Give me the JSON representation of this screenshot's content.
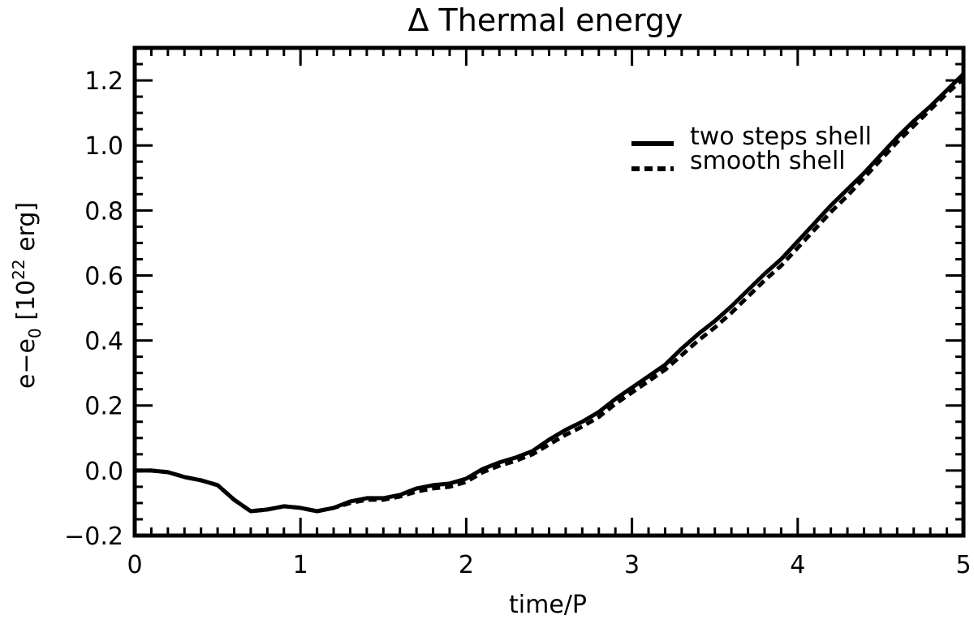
{
  "chart_data": {
    "type": "line",
    "title": "Δ Thermal energy",
    "xlabel": "time/P",
    "ylabel": {
      "prefix": "e−e",
      "sub": "0",
      "unit_open": " [10",
      "sup": "22",
      "unit_close": " erg]"
    },
    "xlim": [
      0,
      5
    ],
    "ylim": [
      -0.2,
      1.3
    ],
    "xticks": [
      0,
      1,
      2,
      3,
      4,
      5
    ],
    "xtick_labels": [
      "0",
      "1",
      "2",
      "3",
      "4",
      "5"
    ],
    "yticks": [
      -0.2,
      0.0,
      0.2,
      0.4,
      0.6,
      0.8,
      1.0,
      1.2
    ],
    "ytick_labels": [
      "−0.2",
      "0.0",
      "0.2",
      "0.4",
      "0.6",
      "0.8",
      "1.0",
      "1.2"
    ],
    "legend_position": "top-right",
    "x": [
      0,
      0.1,
      0.2,
      0.3,
      0.4,
      0.5,
      0.6,
      0.7,
      0.8,
      0.9,
      1.0,
      1.1,
      1.2,
      1.3,
      1.4,
      1.5,
      1.6,
      1.7,
      1.8,
      1.9,
      2.0,
      2.1,
      2.2,
      2.3,
      2.4,
      2.5,
      2.6,
      2.7,
      2.8,
      2.9,
      3.0,
      3.1,
      3.2,
      3.3,
      3.4,
      3.5,
      3.6,
      3.7,
      3.8,
      3.9,
      4.0,
      4.1,
      4.2,
      4.3,
      4.4,
      4.5,
      4.6,
      4.7,
      4.8,
      4.9,
      5.0
    ],
    "series": [
      {
        "name": "two steps shell",
        "style": "solid",
        "values": [
          0.0,
          0.0,
          -0.005,
          -0.02,
          -0.03,
          -0.045,
          -0.09,
          -0.125,
          -0.12,
          -0.11,
          -0.115,
          -0.125,
          -0.115,
          -0.095,
          -0.085,
          -0.085,
          -0.075,
          -0.055,
          -0.045,
          -0.04,
          -0.025,
          0.005,
          0.025,
          0.04,
          0.06,
          0.095,
          0.125,
          0.15,
          0.18,
          0.22,
          0.255,
          0.29,
          0.325,
          0.375,
          0.42,
          0.46,
          0.505,
          0.555,
          0.605,
          0.65,
          0.705,
          0.76,
          0.815,
          0.865,
          0.915,
          0.97,
          1.025,
          1.075,
          1.12,
          1.17,
          1.22
        ]
      },
      {
        "name": "smooth shell",
        "style": "dashed",
        "values": [
          0.0,
          0.0,
          -0.005,
          -0.02,
          -0.03,
          -0.045,
          -0.09,
          -0.125,
          -0.12,
          -0.11,
          -0.115,
          -0.125,
          -0.115,
          -0.1,
          -0.09,
          -0.09,
          -0.08,
          -0.065,
          -0.055,
          -0.05,
          -0.035,
          -0.005,
          0.015,
          0.03,
          0.05,
          0.08,
          0.11,
          0.135,
          0.165,
          0.205,
          0.24,
          0.275,
          0.31,
          0.355,
          0.4,
          0.44,
          0.485,
          0.535,
          0.585,
          0.63,
          0.685,
          0.74,
          0.795,
          0.845,
          0.9,
          0.955,
          1.01,
          1.06,
          1.11,
          1.16,
          1.205
        ]
      }
    ]
  }
}
